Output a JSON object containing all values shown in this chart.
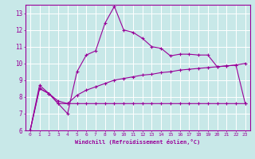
{
  "xlabel": "Windchill (Refroidissement éolien,°C)",
  "bg_color": "#c8e8e8",
  "grid_color": "#ffffff",
  "line_color": "#990099",
  "xlim": [
    -0.5,
    23.5
  ],
  "ylim": [
    6,
    13.5
  ],
  "xticks": [
    0,
    1,
    2,
    3,
    4,
    5,
    6,
    7,
    8,
    9,
    10,
    11,
    12,
    13,
    14,
    15,
    16,
    17,
    18,
    19,
    20,
    21,
    22,
    23
  ],
  "yticks": [
    6,
    7,
    8,
    9,
    10,
    11,
    12,
    13
  ],
  "series1_x": [
    0,
    1,
    2,
    3,
    4,
    5,
    6,
    7,
    8,
    9,
    10,
    11,
    12,
    13,
    14,
    15,
    16,
    17,
    18,
    19,
    20,
    21,
    22,
    23
  ],
  "series1_y": [
    6.0,
    8.7,
    8.2,
    7.6,
    7.0,
    9.5,
    10.5,
    10.75,
    12.4,
    13.4,
    12.0,
    11.85,
    11.5,
    11.0,
    10.9,
    10.45,
    10.55,
    10.55,
    10.5,
    10.5,
    9.8,
    9.85,
    9.9,
    10.0
  ],
  "series2_x": [
    0,
    1,
    2,
    3,
    4,
    5,
    6,
    7,
    8,
    9,
    10,
    11,
    12,
    13,
    14,
    15,
    16,
    17,
    18,
    19,
    20,
    21,
    22,
    23
  ],
  "series2_y": [
    6.0,
    8.5,
    8.2,
    7.6,
    7.6,
    7.6,
    7.6,
    7.6,
    7.6,
    7.6,
    7.6,
    7.6,
    7.6,
    7.6,
    7.6,
    7.6,
    7.6,
    7.6,
    7.6,
    7.6,
    7.6,
    7.6,
    7.6,
    7.6
  ],
  "series3_x": [
    0,
    1,
    2,
    3,
    4,
    5,
    6,
    7,
    8,
    9,
    10,
    11,
    12,
    13,
    14,
    15,
    16,
    17,
    18,
    19,
    20,
    21,
    22,
    23
  ],
  "series3_y": [
    6.0,
    8.5,
    8.2,
    7.75,
    7.6,
    8.1,
    8.4,
    8.6,
    8.8,
    9.0,
    9.1,
    9.2,
    9.3,
    9.35,
    9.45,
    9.5,
    9.6,
    9.65,
    9.7,
    9.75,
    9.8,
    9.85,
    9.9,
    7.6
  ]
}
